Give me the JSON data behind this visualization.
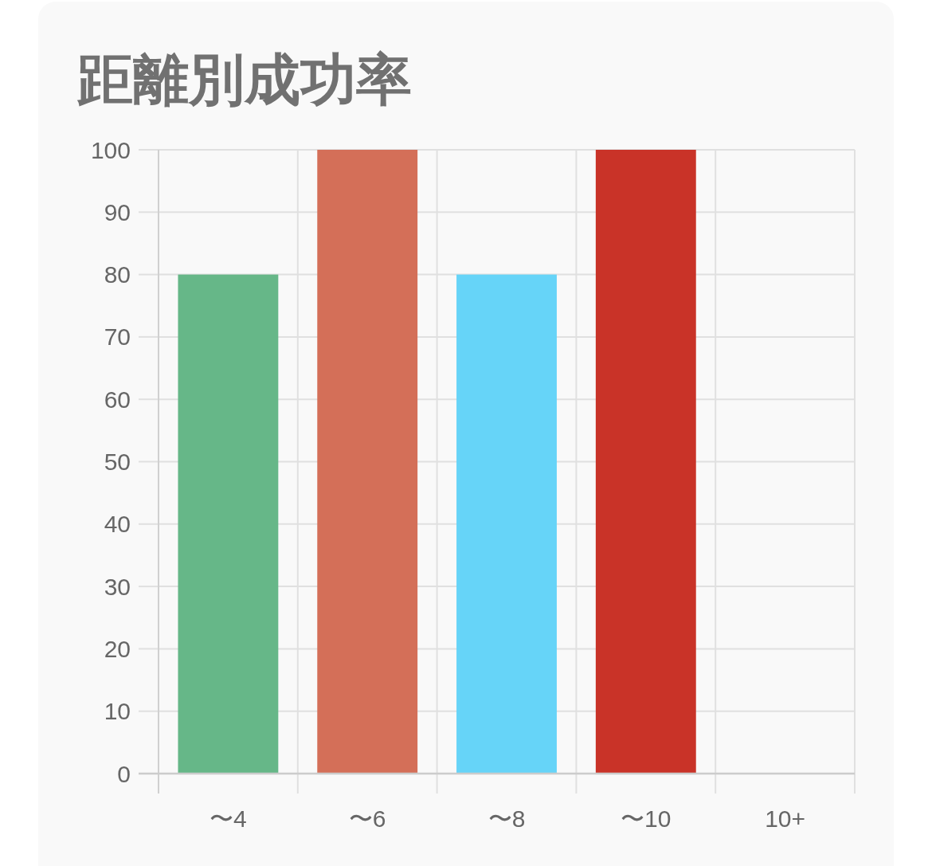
{
  "chart_data": {
    "type": "bar",
    "title": "距離別成功率",
    "categories": [
      "〜4",
      "〜6",
      "〜8",
      "〜10",
      "10+"
    ],
    "values": [
      80,
      100,
      80,
      100,
      null
    ],
    "colors": [
      "#66b788",
      "#d46f58",
      "#66d4f8",
      "#c93328",
      null
    ],
    "ylim": [
      0,
      100
    ],
    "yticks": [
      0,
      10,
      20,
      30,
      40,
      50,
      60,
      70,
      80,
      90,
      100
    ],
    "grid": true
  }
}
